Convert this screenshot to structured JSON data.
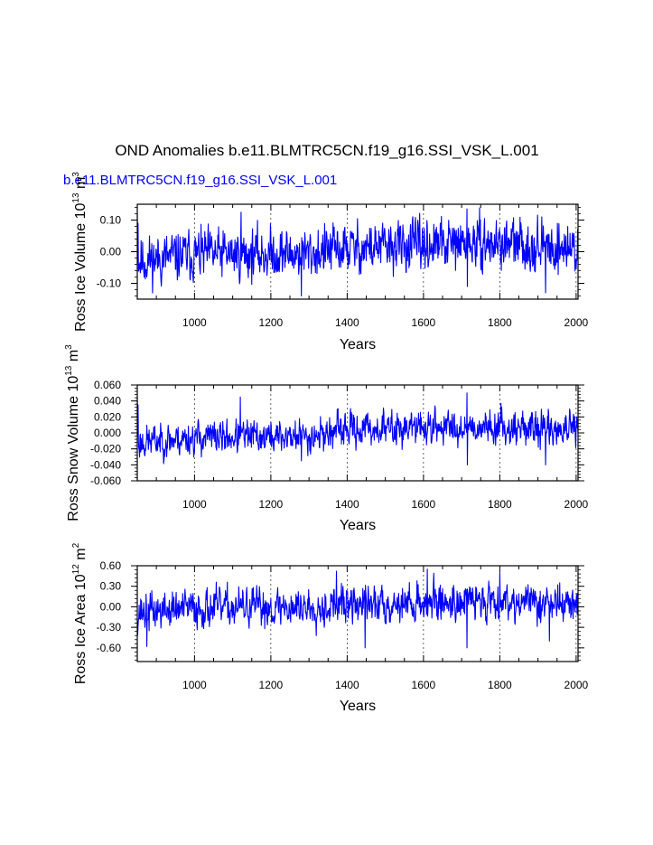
{
  "figure": {
    "title": "OND Anomalies b.e11.BLMTRC5CN.f19_g16.SSI_VSK_L.001",
    "subtitle": "b.e11.BLMTRC5CN.f19_g16.SSI_VSK_L.001",
    "subtitle_color": "#0000ff",
    "line_color": "#0000ff"
  },
  "chart_data": [
    {
      "type": "line",
      "title": "",
      "xlabel": "Years",
      "ylabel": {
        "main": "Ross Ice Volume 10",
        "exp": "13",
        "unit": " m",
        "unit_exp": "3"
      },
      "xlim": [
        850,
        2005
      ],
      "ylim": [
        -0.15,
        0.15
      ],
      "xticks": [
        1000,
        1200,
        1400,
        1600,
        1800,
        2000
      ],
      "xtick_labels": [
        "1000",
        "1200",
        "1400",
        "1600",
        "1800",
        "2000"
      ],
      "yticks": [
        0.1,
        0.0,
        -0.1
      ],
      "ytick_labels": [
        "0.10",
        "0.00",
        "-0.10"
      ],
      "grid": "x-dashed",
      "series": {
        "name": "Ross Ice Volume",
        "x_start": 850,
        "x_end": 2005,
        "amplitude": 0.045,
        "mean": 0.0,
        "seed": 11,
        "trend_points": [
          [
            850,
            -0.03
          ],
          [
            1000,
            -0.01
          ],
          [
            1300,
            -0.005
          ],
          [
            1400,
            0.01
          ],
          [
            1600,
            0.02
          ],
          [
            1800,
            0.025
          ],
          [
            2005,
            0.01
          ]
        ],
        "highlights": [
          [
            850,
            0.12
          ],
          [
            852,
            0.09
          ],
          [
            1122,
            0.125
          ],
          [
            1280,
            -0.14
          ],
          [
            1714,
            0.135
          ],
          [
            1920,
            -0.13
          ],
          [
            1715,
            -0.11
          ]
        ]
      }
    },
    {
      "type": "line",
      "title": "",
      "xlabel": "Years",
      "ylabel": {
        "main": "Ross Snow Volume 10",
        "exp": "13",
        "unit": " m",
        "unit_exp": "3"
      },
      "xlim": [
        850,
        2005
      ],
      "ylim": [
        -0.06,
        0.06
      ],
      "xticks": [
        1000,
        1200,
        1400,
        1600,
        1800,
        2000
      ],
      "xtick_labels": [
        "1000",
        "1200",
        "1400",
        "1600",
        "1800",
        "2000"
      ],
      "yticks": [
        0.06,
        0.04,
        0.02,
        0.0,
        -0.02,
        -0.04,
        -0.06
      ],
      "ytick_labels": [
        "0.060",
        "0.040",
        "0.020",
        "0.000",
        "-0.020",
        "-0.040",
        "-0.060"
      ],
      "grid": "x-dashed",
      "series": {
        "name": "Ross Snow Volume",
        "x_start": 850,
        "x_end": 2005,
        "amplitude": 0.012,
        "mean": 0.0,
        "seed": 23,
        "trend_points": [
          [
            850,
            -0.012
          ],
          [
            1000,
            -0.006
          ],
          [
            1300,
            -0.004
          ],
          [
            1400,
            0.004
          ],
          [
            1600,
            0.007
          ],
          [
            1800,
            0.008
          ],
          [
            2005,
            0.003
          ]
        ],
        "highlights": [
          [
            850,
            0.045
          ],
          [
            852,
            0.035
          ],
          [
            1120,
            0.045
          ],
          [
            1714,
            0.05
          ],
          [
            1715,
            -0.04
          ],
          [
            1920,
            -0.04
          ],
          [
            1280,
            -0.035
          ]
        ]
      }
    },
    {
      "type": "line",
      "title": "",
      "xlabel": "Years",
      "ylabel": {
        "main": "Ross Ice Area 10",
        "exp": "12",
        "unit": " m",
        "unit_exp": "2"
      },
      "xlim": [
        850,
        2005
      ],
      "ylim": [
        -0.8,
        0.6
      ],
      "xticks": [
        1000,
        1200,
        1400,
        1600,
        1800,
        2000
      ],
      "xtick_labels": [
        "1000",
        "1200",
        "1400",
        "1600",
        "1800",
        "2000"
      ],
      "yticks": [
        0.6,
        0.3,
        0.0,
        -0.3,
        -0.6
      ],
      "ytick_labels": [
        "0.60",
        "0.30",
        "0.00",
        "-0.30",
        "-0.60"
      ],
      "grid": "x-dashed",
      "series": {
        "name": "Ross Ice Area",
        "x_start": 850,
        "x_end": 2005,
        "amplitude": 0.16,
        "mean": 0.0,
        "seed": 37,
        "trend_points": [
          [
            850,
            -0.08
          ],
          [
            1000,
            -0.02
          ],
          [
            1300,
            0.0
          ],
          [
            1400,
            0.03
          ],
          [
            1600,
            0.06
          ],
          [
            1800,
            0.1
          ],
          [
            2005,
            0.03
          ]
        ],
        "highlights": [
          [
            875,
            -0.58
          ],
          [
            1372,
            0.52
          ],
          [
            1447,
            -0.6
          ],
          [
            1610,
            0.55
          ],
          [
            1714,
            -0.6
          ],
          [
            1930,
            -0.5
          ],
          [
            1800,
            0.5
          ]
        ]
      }
    }
  ]
}
